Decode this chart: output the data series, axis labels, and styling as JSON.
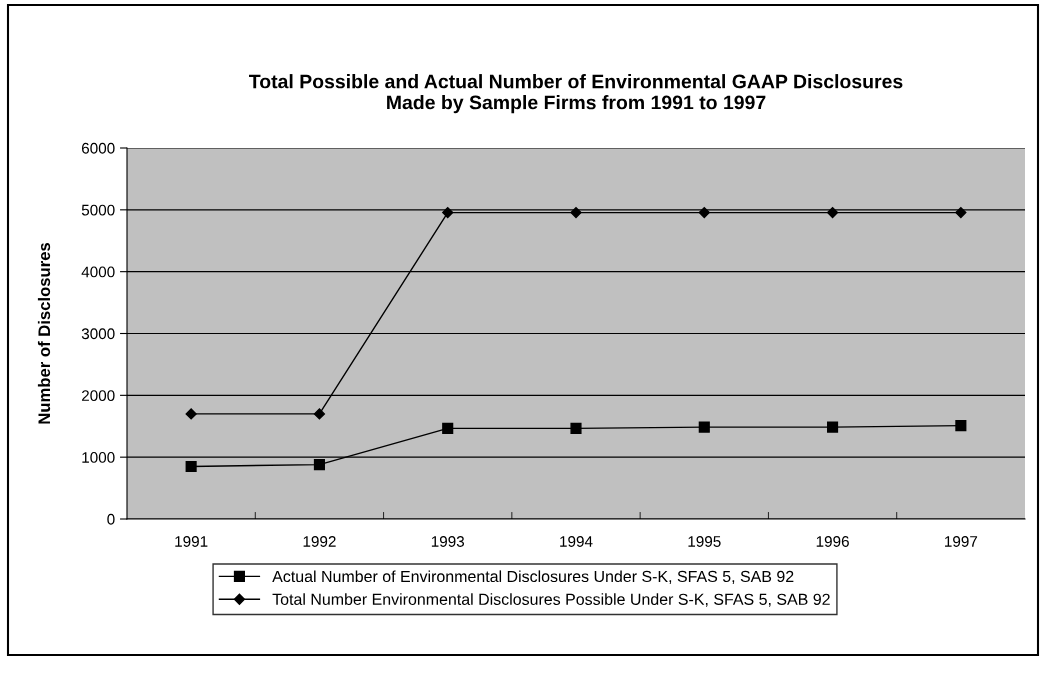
{
  "chart_data": {
    "type": "line",
    "title": "Total Possible and Actual Number of Environmental GAAP Disclosures\nMade by Sample Firms from 1991 to 1997",
    "ylabel": "Number of Disclosures",
    "categories": [
      "1991",
      "1992",
      "1993",
      "1994",
      "1995",
      "1996",
      "1997"
    ],
    "series": [
      {
        "name": "Actual Number of Environmental Disclosures Under S-K, SFAS 5, SAB 92",
        "color": "#000000",
        "marker": "square",
        "values": [
          850,
          880,
          1465,
          1465,
          1485,
          1485,
          1510
        ]
      },
      {
        "name": "Total Number Environmental Disclosures Possible Under S-K, SFAS 5, SAB 92",
        "color": "#000000",
        "marker": "diamond",
        "values": [
          1700,
          1700,
          4955,
          4955,
          4955,
          4955,
          4955
        ]
      }
    ],
    "ylim": [
      0,
      6000
    ],
    "yticks": [
      0,
      1000,
      2000,
      3000,
      4000,
      5000,
      6000
    ],
    "grid": "y",
    "legend": "bottom",
    "line_style": "solid"
  }
}
